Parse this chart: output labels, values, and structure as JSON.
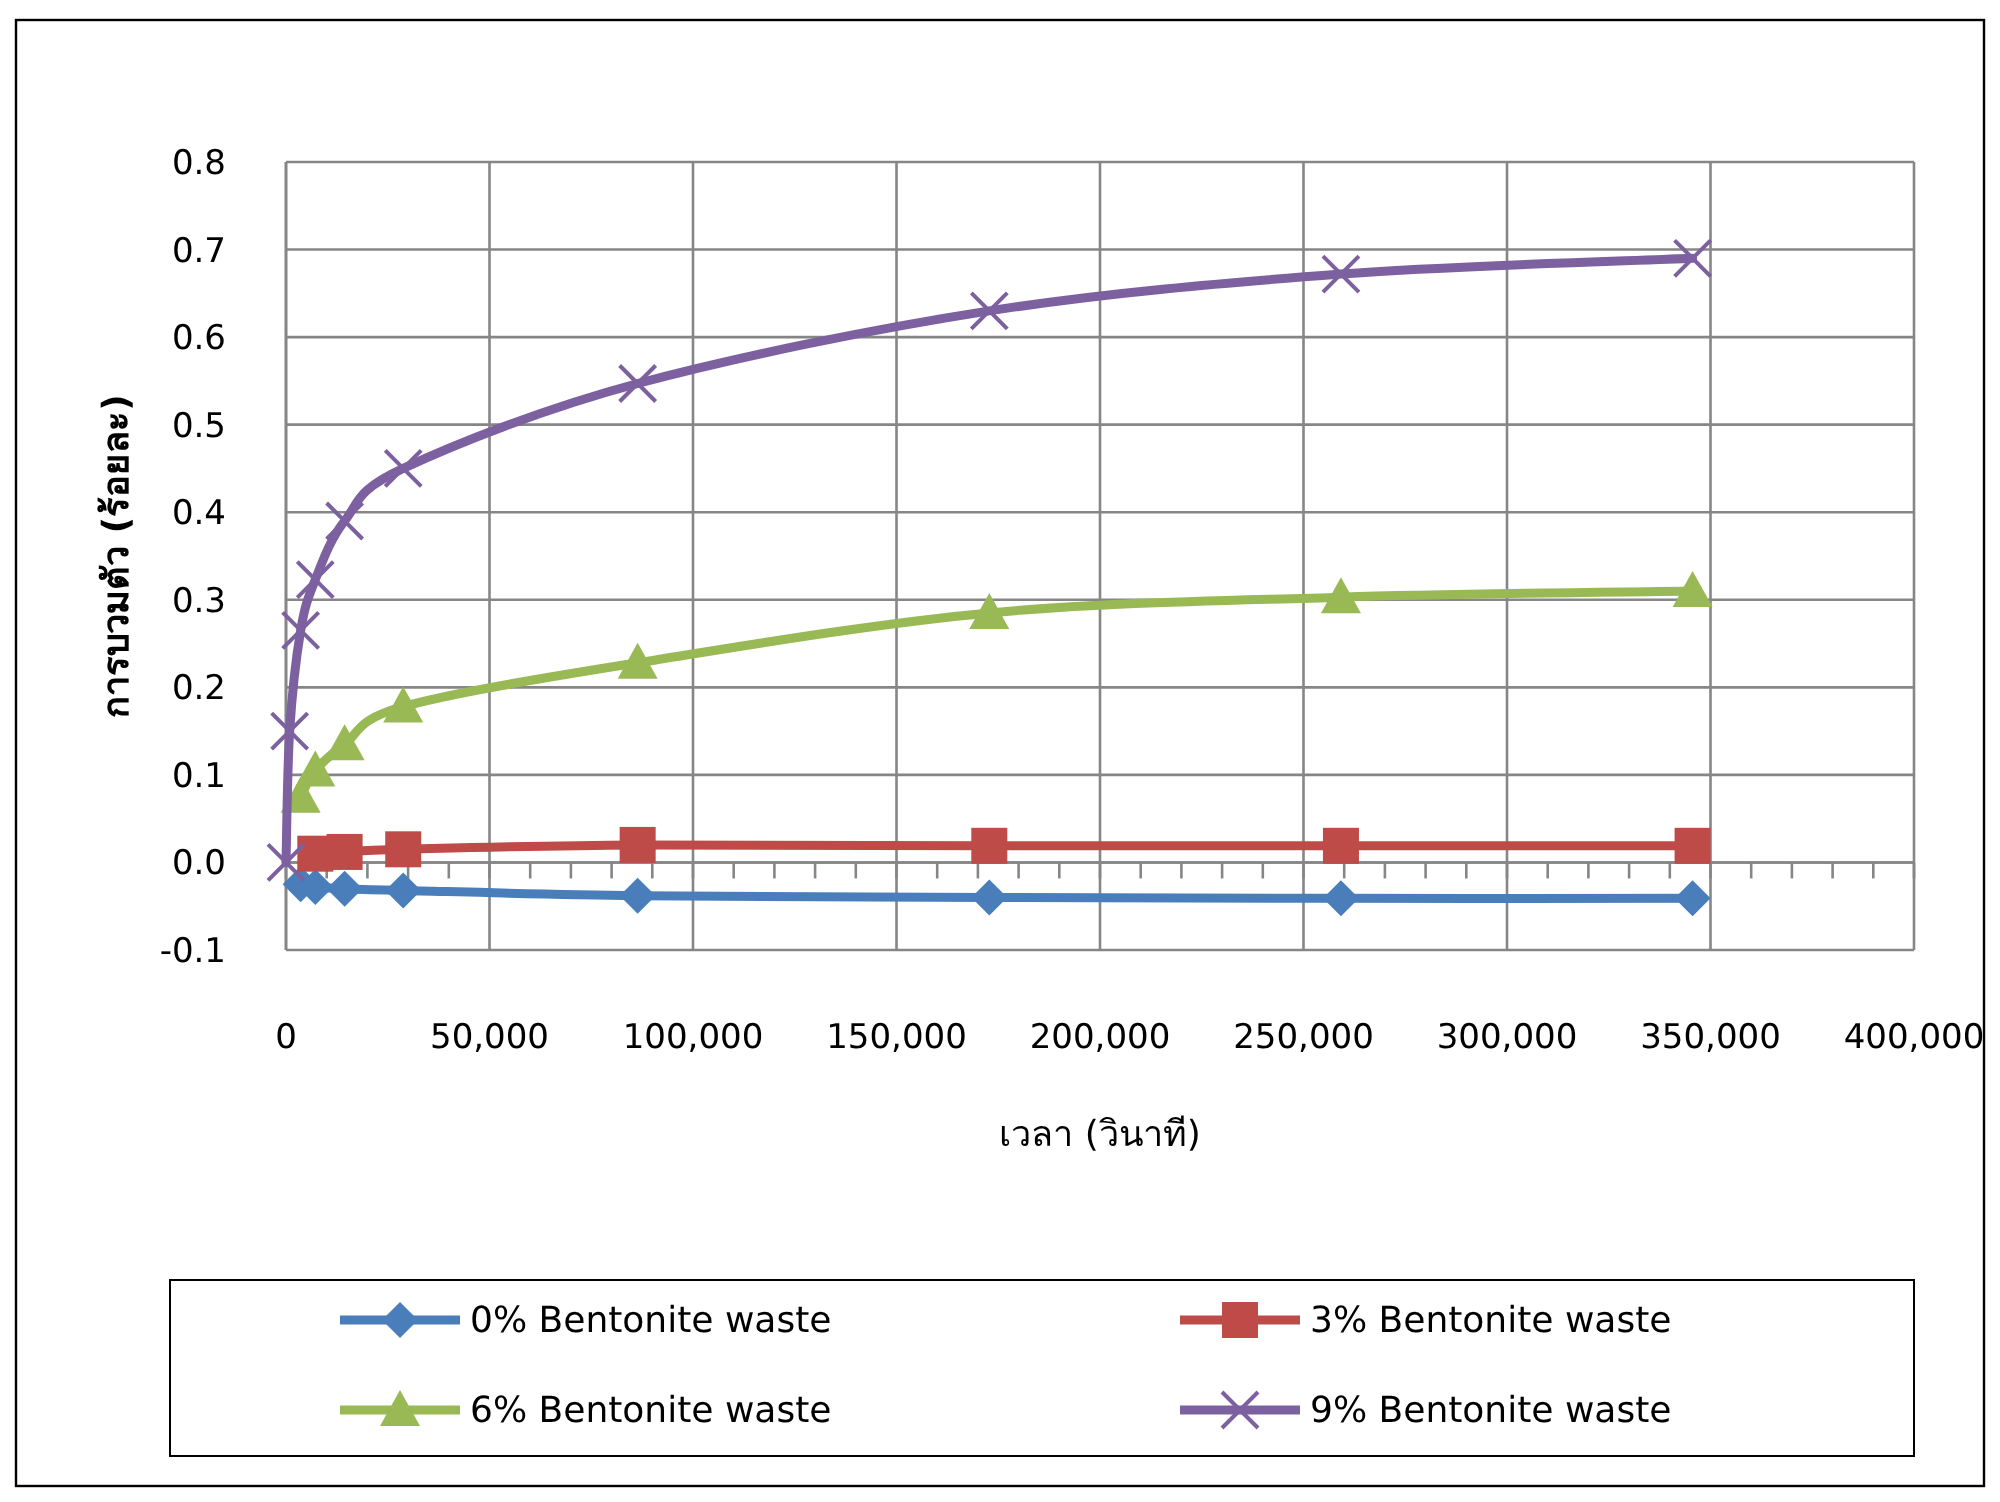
{
  "chart_data": {
    "type": "line",
    "xlabel": "เวลา (วินาที)",
    "ylabel": "การบวมตัว  (ร้อยละ)",
    "x": [
      0,
      900,
      3600,
      7200,
      14400,
      28800,
      86400,
      172800,
      259200,
      345600
    ],
    "series": [
      {
        "name": "0% Bentonite waste",
        "color": "#4a7ebb",
        "marker": "diamond",
        "values": [
          null,
          null,
          -0.025,
          -0.028,
          -0.03,
          -0.032,
          -0.038,
          -0.04,
          -0.041,
          -0.041
        ]
      },
      {
        "name": "3% Bentonite waste",
        "color": "#be4b48",
        "marker": "square",
        "values": [
          null,
          null,
          null,
          0.01,
          0.012,
          0.015,
          0.02,
          0.019,
          0.019,
          0.019
        ]
      },
      {
        "name": "6% Bentonite waste",
        "color": "#98b954",
        "marker": "triangle",
        "values": [
          null,
          null,
          0.075,
          0.105,
          0.135,
          0.178,
          0.228,
          0.285,
          0.303,
          0.31
        ]
      },
      {
        "name": "9% Bentonite waste",
        "color": "#7d60a0",
        "marker": "cross",
        "values": [
          0,
          0.15,
          0.265,
          0.323,
          0.39,
          0.45,
          0.547,
          0.63,
          0.672,
          0.69
        ]
      }
    ],
    "xlim": [
      0,
      400000
    ],
    "xticks": [
      0,
      {
        "value": 50000,
        "label": "50,000"
      },
      {
        "value": 100000,
        "label": "100,000"
      },
      {
        "value": 150000,
        "label": "150,000"
      },
      {
        "value": 200000,
        "label": "200,000"
      },
      {
        "value": 250000,
        "label": "250,000"
      },
      {
        "value": 300000,
        "label": "300,000"
      },
      {
        "value": 350000,
        "label": "350,000"
      },
      {
        "value": 400000,
        "label": "400,000"
      }
    ],
    "ylim": [
      -0.1,
      0.8
    ],
    "yticks": [
      -0.1,
      {
        "value": 0,
        "label": "0.0"
      },
      0.1,
      0.2,
      0.3,
      0.4,
      0.5,
      0.6,
      0.7,
      0.8
    ],
    "grid": true,
    "legend": "bottom",
    "line_style": "solid"
  }
}
